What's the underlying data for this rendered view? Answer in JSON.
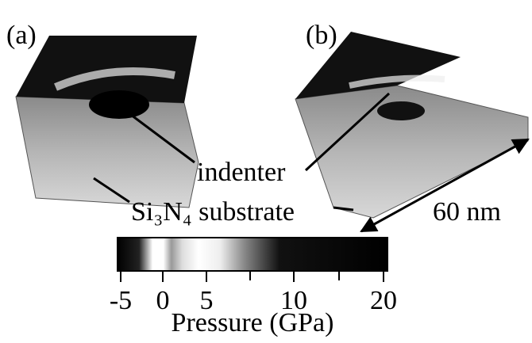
{
  "panels": [
    {
      "label": "(a)"
    },
    {
      "label": "(b)"
    }
  ],
  "annotations": {
    "indenter": "indenter",
    "substrate": "Si₃N₄ substrate",
    "scale": "60 nm"
  },
  "colorbar": {
    "ticks": [
      -5,
      0,
      5,
      10,
      20
    ],
    "label": "Pressure (GPa)"
  }
}
